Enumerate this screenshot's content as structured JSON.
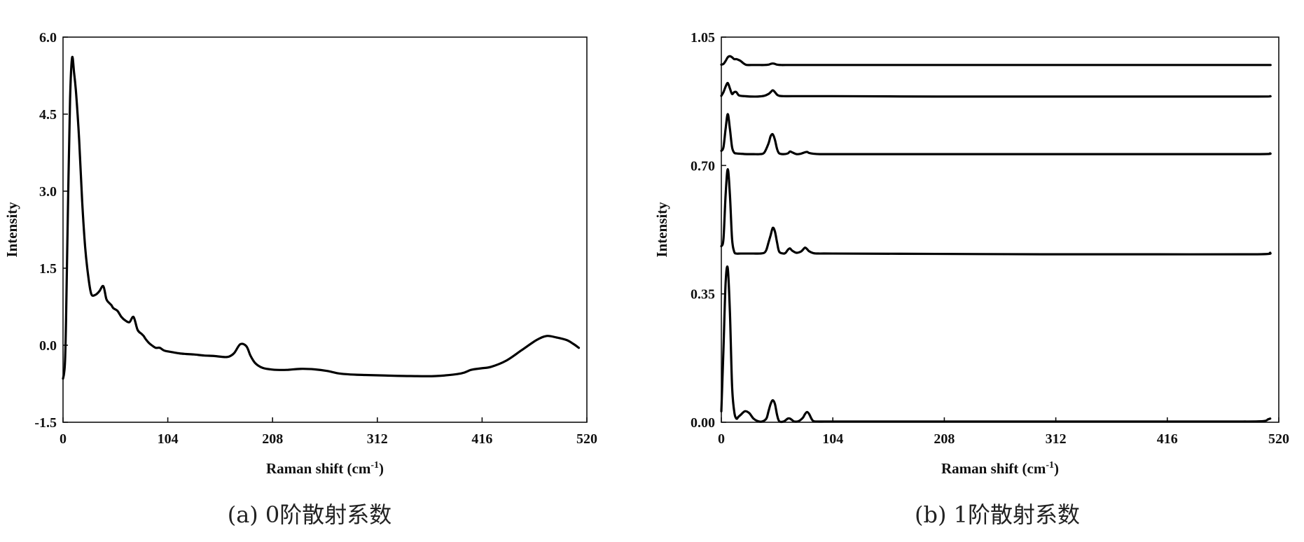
{
  "captions": [
    "(a) 0阶散射系数",
    "(b) 1阶散射系数"
  ],
  "chart_data": [
    {
      "type": "line",
      "xlabel": "Raman shift (cm-1)",
      "xlabel_main": "Raman shift (cm",
      "xlabel_sup": "-1",
      "xlabel_end": ")",
      "ylabel": "Intensity",
      "xlim": [
        0,
        520
      ],
      "ylim": [
        -1.5,
        6.0
      ],
      "xticks": [
        0,
        104,
        208,
        312,
        416,
        520
      ],
      "yticks": [
        -1.5,
        0.0,
        1.5,
        3.0,
        4.5,
        6.0
      ],
      "xtick_labels": [
        "0",
        "104",
        "208",
        "312",
        "416",
        "520"
      ],
      "ytick_labels": [
        "-1.5",
        "0.0",
        "1.5",
        "3.0",
        "4.5",
        "6.0"
      ],
      "grid": false,
      "color": "#000000",
      "series": [
        {
          "x": [
            0,
            1,
            2,
            3,
            5,
            7,
            9,
            11,
            13,
            16,
            19,
            22,
            25,
            28,
            32,
            36,
            40,
            43,
            46,
            48,
            50,
            54,
            58,
            62,
            66,
            70,
            74,
            78,
            80,
            82,
            85,
            88,
            92,
            96,
            100,
            104,
            110,
            116,
            122,
            130,
            140,
            150,
            160,
            165,
            170,
            176,
            182,
            186,
            190,
            194,
            198,
            202,
            206,
            212,
            222,
            236,
            250,
            262,
            274,
            286,
            300,
            320,
            345,
            370,
            395,
            405,
            415,
            425,
            440,
            455,
            470,
            480,
            490,
            500,
            507,
            512
          ],
          "y": [
            -0.65,
            -0.55,
            -0.3,
            0.5,
            2.8,
            4.8,
            5.6,
            5.3,
            4.9,
            4.0,
            2.8,
            1.9,
            1.35,
            1.0,
            0.98,
            1.05,
            1.15,
            0.9,
            0.82,
            0.78,
            0.72,
            0.67,
            0.55,
            0.48,
            0.45,
            0.55,
            0.3,
            0.22,
            0.18,
            0.12,
            0.05,
            0.0,
            -0.05,
            -0.05,
            -0.1,
            -0.12,
            -0.14,
            -0.16,
            -0.17,
            -0.18,
            -0.2,
            -0.21,
            -0.23,
            -0.22,
            -0.15,
            0.02,
            -0.02,
            -0.2,
            -0.33,
            -0.4,
            -0.44,
            -0.46,
            -0.47,
            -0.48,
            -0.48,
            -0.46,
            -0.47,
            -0.5,
            -0.55,
            -0.57,
            -0.58,
            -0.59,
            -0.6,
            -0.6,
            -0.55,
            -0.48,
            -0.45,
            -0.42,
            -0.3,
            -0.1,
            0.1,
            0.18,
            0.15,
            0.1,
            0.02,
            -0.05
          ]
        }
      ]
    },
    {
      "type": "line",
      "xlabel": "Raman shift (cm-1)",
      "xlabel_main": "Raman shift (cm",
      "xlabel_sup": "-1",
      "xlabel_end": ")",
      "ylabel": "Intensity",
      "xlim": [
        0,
        520
      ],
      "ylim": [
        0.0,
        1.05
      ],
      "xticks": [
        0,
        104,
        208,
        312,
        416,
        520
      ],
      "yticks": [
        0.0,
        0.35,
        0.7,
        1.05
      ],
      "xtick_labels": [
        "0",
        "104",
        "208",
        "312",
        "416",
        "520"
      ],
      "ytick_labels": [
        "0.00",
        "0.35",
        "0.70",
        "1.05"
      ],
      "grid": false,
      "color": "#000000",
      "series": [
        {
          "x": [
            0,
            2,
            4,
            6,
            8,
            10,
            12,
            14,
            16,
            18,
            22,
            26,
            30,
            34,
            38,
            42,
            44,
            46,
            48,
            50,
            52,
            54,
            58,
            62,
            64,
            66,
            68,
            72,
            76,
            78,
            80,
            82,
            84,
            86,
            90,
            96,
            104,
            120,
            150,
            200,
            300,
            400,
            480,
            505,
            510,
            512
          ],
          "y": [
            0.03,
            0.2,
            0.38,
            0.42,
            0.3,
            0.1,
            0.03,
            0.01,
            0.015,
            0.02,
            0.03,
            0.025,
            0.01,
            0.003,
            0.002,
            0.01,
            0.03,
            0.05,
            0.06,
            0.05,
            0.02,
            0.003,
            0.002,
            0.01,
            0.01,
            0.006,
            0.002,
            0.003,
            0.012,
            0.022,
            0.028,
            0.022,
            0.01,
            0.003,
            0.002,
            0.002,
            0.002,
            0.002,
            0.002,
            0.002,
            0.002,
            0.002,
            0.002,
            0.003,
            0.008,
            0.01
          ]
        },
        {
          "x": [
            0,
            2,
            4,
            6,
            8,
            10,
            12,
            14,
            18,
            24,
            30,
            36,
            40,
            42,
            44,
            46,
            48,
            50,
            52,
            54,
            58,
            60,
            62,
            64,
            66,
            70,
            74,
            76,
            78,
            80,
            82,
            86,
            92,
            104,
            200,
            300,
            400,
            500,
            512
          ],
          "y": [
            0.48,
            0.5,
            0.62,
            0.69,
            0.62,
            0.5,
            0.465,
            0.46,
            0.46,
            0.46,
            0.46,
            0.46,
            0.462,
            0.47,
            0.49,
            0.51,
            0.53,
            0.52,
            0.49,
            0.465,
            0.46,
            0.462,
            0.47,
            0.474,
            0.468,
            0.462,
            0.465,
            0.47,
            0.476,
            0.472,
            0.466,
            0.461,
            0.46,
            0.46,
            0.459,
            0.458,
            0.458,
            0.458,
            0.462
          ]
        },
        {
          "x": [
            0,
            2,
            4,
            6,
            8,
            10,
            12,
            14,
            18,
            24,
            30,
            36,
            40,
            44,
            46,
            48,
            50,
            52,
            54,
            58,
            62,
            64,
            66,
            70,
            74,
            78,
            80,
            82,
            86,
            92,
            104,
            200,
            300,
            400,
            500,
            512
          ],
          "y": [
            0.74,
            0.75,
            0.8,
            0.84,
            0.8,
            0.75,
            0.735,
            0.733,
            0.732,
            0.731,
            0.731,
            0.731,
            0.735,
            0.76,
            0.78,
            0.785,
            0.77,
            0.745,
            0.733,
            0.731,
            0.733,
            0.738,
            0.736,
            0.731,
            0.732,
            0.736,
            0.737,
            0.734,
            0.732,
            0.731,
            0.731,
            0.731,
            0.731,
            0.731,
            0.731,
            0.733
          ]
        },
        {
          "x": [
            0,
            2,
            4,
            6,
            8,
            10,
            12,
            14,
            16,
            18,
            22,
            28,
            34,
            40,
            44,
            46,
            48,
            50,
            52,
            54,
            58,
            66,
            80,
            104,
            200,
            300,
            400,
            500,
            512
          ],
          "y": [
            0.89,
            0.9,
            0.915,
            0.925,
            0.91,
            0.895,
            0.9,
            0.9,
            0.892,
            0.89,
            0.889,
            0.888,
            0.888,
            0.89,
            0.895,
            0.9,
            0.905,
            0.9,
            0.893,
            0.89,
            0.889,
            0.889,
            0.889,
            0.889,
            0.888,
            0.888,
            0.888,
            0.888,
            0.889
          ]
        },
        {
          "x": [
            0,
            2,
            4,
            6,
            8,
            10,
            12,
            14,
            16,
            18,
            20,
            22,
            24,
            28,
            34,
            40,
            44,
            46,
            48,
            50,
            52,
            56,
            60,
            80,
            104,
            200,
            300,
            400,
            500,
            512
          ],
          "y": [
            0.975,
            0.977,
            0.985,
            0.995,
            0.998,
            0.995,
            0.99,
            0.99,
            0.988,
            0.985,
            0.98,
            0.976,
            0.974,
            0.974,
            0.974,
            0.974,
            0.975,
            0.977,
            0.978,
            0.977,
            0.975,
            0.974,
            0.974,
            0.974,
            0.974,
            0.974,
            0.974,
            0.974,
            0.974,
            0.974
          ]
        }
      ]
    }
  ]
}
